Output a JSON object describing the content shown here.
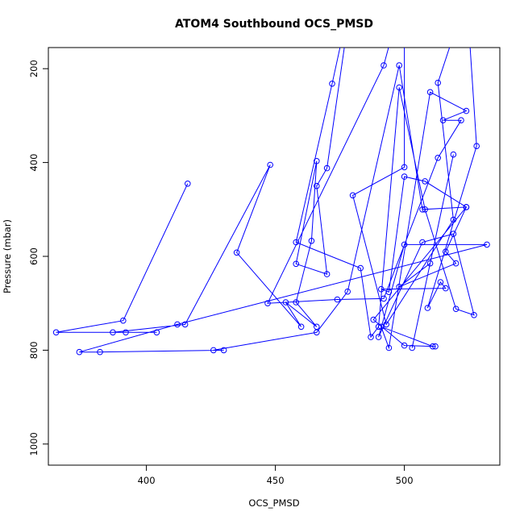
{
  "chart_data": {
    "type": "line",
    "title": "ATOM4 Southbound OCS_PMSD",
    "xlabel": "OCS_PMSD",
    "ylabel": "Pressure (mbar)",
    "xlim": [
      362,
      537
    ],
    "ylim": [
      1045,
      155
    ],
    "y_reversed": true,
    "xticks": [
      400,
      450,
      500
    ],
    "yticks": [
      200,
      400,
      600,
      800,
      1000
    ],
    "grid": false,
    "line_color": "#0000ff",
    "marker": "open-circle",
    "series": [
      {
        "points": [
          [
            416,
            445
          ],
          [
            391,
            737
          ],
          [
            365,
            762
          ],
          [
            392,
            762
          ],
          [
            404,
            762
          ],
          [
            387,
            762
          ],
          [
            415,
            745
          ],
          [
            448,
            405
          ],
          [
            435,
            592
          ],
          [
            460,
            750
          ],
          [
            454,
            698
          ],
          [
            466,
            750
          ],
          [
            458,
            698
          ],
          [
            464,
            567
          ],
          [
            466,
            397
          ],
          [
            458,
            616
          ],
          [
            470,
            638
          ],
          [
            466,
            450
          ],
          [
            470,
            412
          ],
          [
            480,
            30
          ],
          [
            472,
            232
          ],
          [
            458,
            570
          ],
          [
            483,
            625
          ],
          [
            487,
            772
          ],
          [
            490,
            750
          ],
          [
            498,
            240
          ],
          [
            508,
            500
          ],
          [
            520,
            712
          ],
          [
            527,
            725
          ],
          [
            519,
            552
          ],
          [
            507,
            570
          ],
          [
            490,
            772
          ],
          [
            500,
            575
          ],
          [
            532,
            575
          ],
          [
            412,
            745
          ],
          [
            374,
            804
          ],
          [
            382,
            804
          ],
          [
            430,
            800
          ],
          [
            426,
            800
          ],
          [
            466,
            762
          ],
          [
            478,
            675
          ],
          [
            498,
            193
          ],
          [
            507,
            500
          ],
          [
            524,
            495
          ],
          [
            488,
            735
          ],
          [
            500,
            790
          ],
          [
            512,
            792
          ],
          [
            511,
            792
          ],
          [
            491,
            750
          ],
          [
            494,
            795
          ],
          [
            510,
            250
          ],
          [
            524,
            290
          ],
          [
            515,
            310
          ],
          [
            522,
            310
          ],
          [
            513,
            390
          ],
          [
            492,
            690
          ],
          [
            474,
            692
          ],
          [
            447,
            700
          ],
          [
            492,
            193
          ],
          [
            500,
            30
          ],
          [
            500,
            410
          ],
          [
            480,
            470
          ],
          [
            493,
            745
          ],
          [
            519,
            522
          ],
          [
            513,
            230
          ],
          [
            525,
            30
          ],
          [
            524,
            30
          ],
          [
            528,
            365
          ],
          [
            509,
            710
          ],
          [
            514,
            655
          ],
          [
            516,
            668
          ],
          [
            491,
            670
          ],
          [
            494,
            676
          ],
          [
            500,
            430
          ],
          [
            508,
            440
          ],
          [
            524,
            495
          ],
          [
            516,
            590
          ],
          [
            520,
            615
          ],
          [
            498,
            665
          ],
          [
            510,
            615
          ],
          [
            519,
            383
          ],
          [
            503,
            795
          ]
        ]
      }
    ]
  }
}
